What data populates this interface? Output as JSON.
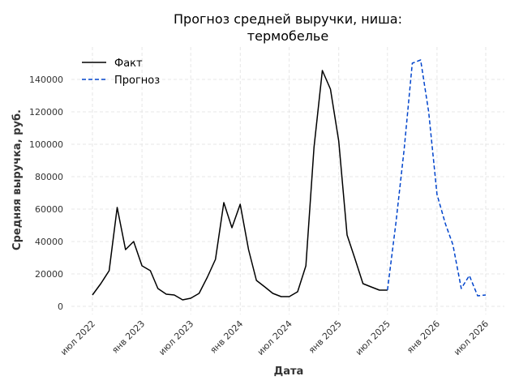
{
  "chart_data": {
    "type": "line",
    "title": [
      "Прогноз средней выручки, ниша:",
      "термобелье"
    ],
    "xlabel": "Дата",
    "ylabel": "Средняя выручка, руб.",
    "ylim": [
      0,
      160000
    ],
    "yticks": [
      0,
      20000,
      40000,
      60000,
      80000,
      100000,
      120000,
      140000
    ],
    "xticks": [
      {
        "date": "2022-07-01",
        "label": "июл 2022"
      },
      {
        "date": "2023-01-01",
        "label": "янв 2023"
      },
      {
        "date": "2023-07-01",
        "label": "июл 2023"
      },
      {
        "date": "2024-01-01",
        "label": "янв 2024"
      },
      {
        "date": "2024-07-01",
        "label": "июл 2024"
      },
      {
        "date": "2025-01-01",
        "label": "янв 2025"
      },
      {
        "date": "2025-07-01",
        "label": "июл 2025"
      },
      {
        "date": "2026-01-01",
        "label": "янв 2026"
      },
      {
        "date": "2026-07-01",
        "label": "июл 2026"
      }
    ],
    "grid": true,
    "legend_position": "top-left",
    "series": [
      {
        "name": "Факт",
        "color": "#000000",
        "style": "solid",
        "points": [
          [
            "2022-07-01",
            7000
          ],
          [
            "2022-08-01",
            14000
          ],
          [
            "2022-09-01",
            22000
          ],
          [
            "2022-10-01",
            61000
          ],
          [
            "2022-11-01",
            35000
          ],
          [
            "2022-12-01",
            40000
          ],
          [
            "2023-01-01",
            25000
          ],
          [
            "2023-02-01",
            22000
          ],
          [
            "2023-03-01",
            11000
          ],
          [
            "2023-04-01",
            7500
          ],
          [
            "2023-05-01",
            7000
          ],
          [
            "2023-06-01",
            4000
          ],
          [
            "2023-07-01",
            5000
          ],
          [
            "2023-08-01",
            8000
          ],
          [
            "2023-09-01",
            18000
          ],
          [
            "2023-10-01",
            29000
          ],
          [
            "2023-11-01",
            64000
          ],
          [
            "2023-12-01",
            48500
          ],
          [
            "2024-01-01",
            63000
          ],
          [
            "2024-02-01",
            35000
          ],
          [
            "2024-03-01",
            16000
          ],
          [
            "2024-04-01",
            12000
          ],
          [
            "2024-05-01",
            8000
          ],
          [
            "2024-06-01",
            6000
          ],
          [
            "2024-07-01",
            6000
          ],
          [
            "2024-08-01",
            9000
          ],
          [
            "2024-09-01",
            25000
          ],
          [
            "2024-10-01",
            98000
          ],
          [
            "2024-11-01",
            145500
          ],
          [
            "2024-12-01",
            134000
          ],
          [
            "2025-01-01",
            102000
          ],
          [
            "2025-02-01",
            44000
          ],
          [
            "2025-03-01",
            30000
          ],
          [
            "2025-04-01",
            14000
          ],
          [
            "2025-05-01",
            12000
          ],
          [
            "2025-06-01",
            10000
          ],
          [
            "2025-07-01",
            10000
          ]
        ]
      },
      {
        "name": "Прогноз",
        "color": "#0044cc",
        "style": "dashed",
        "points": [
          [
            "2025-07-01",
            10000
          ],
          [
            "2025-08-01",
            51000
          ],
          [
            "2025-09-01",
            97000
          ],
          [
            "2025-10-01",
            150000
          ],
          [
            "2025-11-01",
            152000
          ],
          [
            "2025-12-01",
            120000
          ],
          [
            "2026-01-01",
            69000
          ],
          [
            "2026-02-01",
            51000
          ],
          [
            "2026-03-01",
            38000
          ],
          [
            "2026-04-01",
            11000
          ],
          [
            "2026-05-01",
            19000
          ],
          [
            "2026-06-01",
            6500
          ],
          [
            "2026-07-01",
            7000
          ]
        ]
      }
    ]
  }
}
